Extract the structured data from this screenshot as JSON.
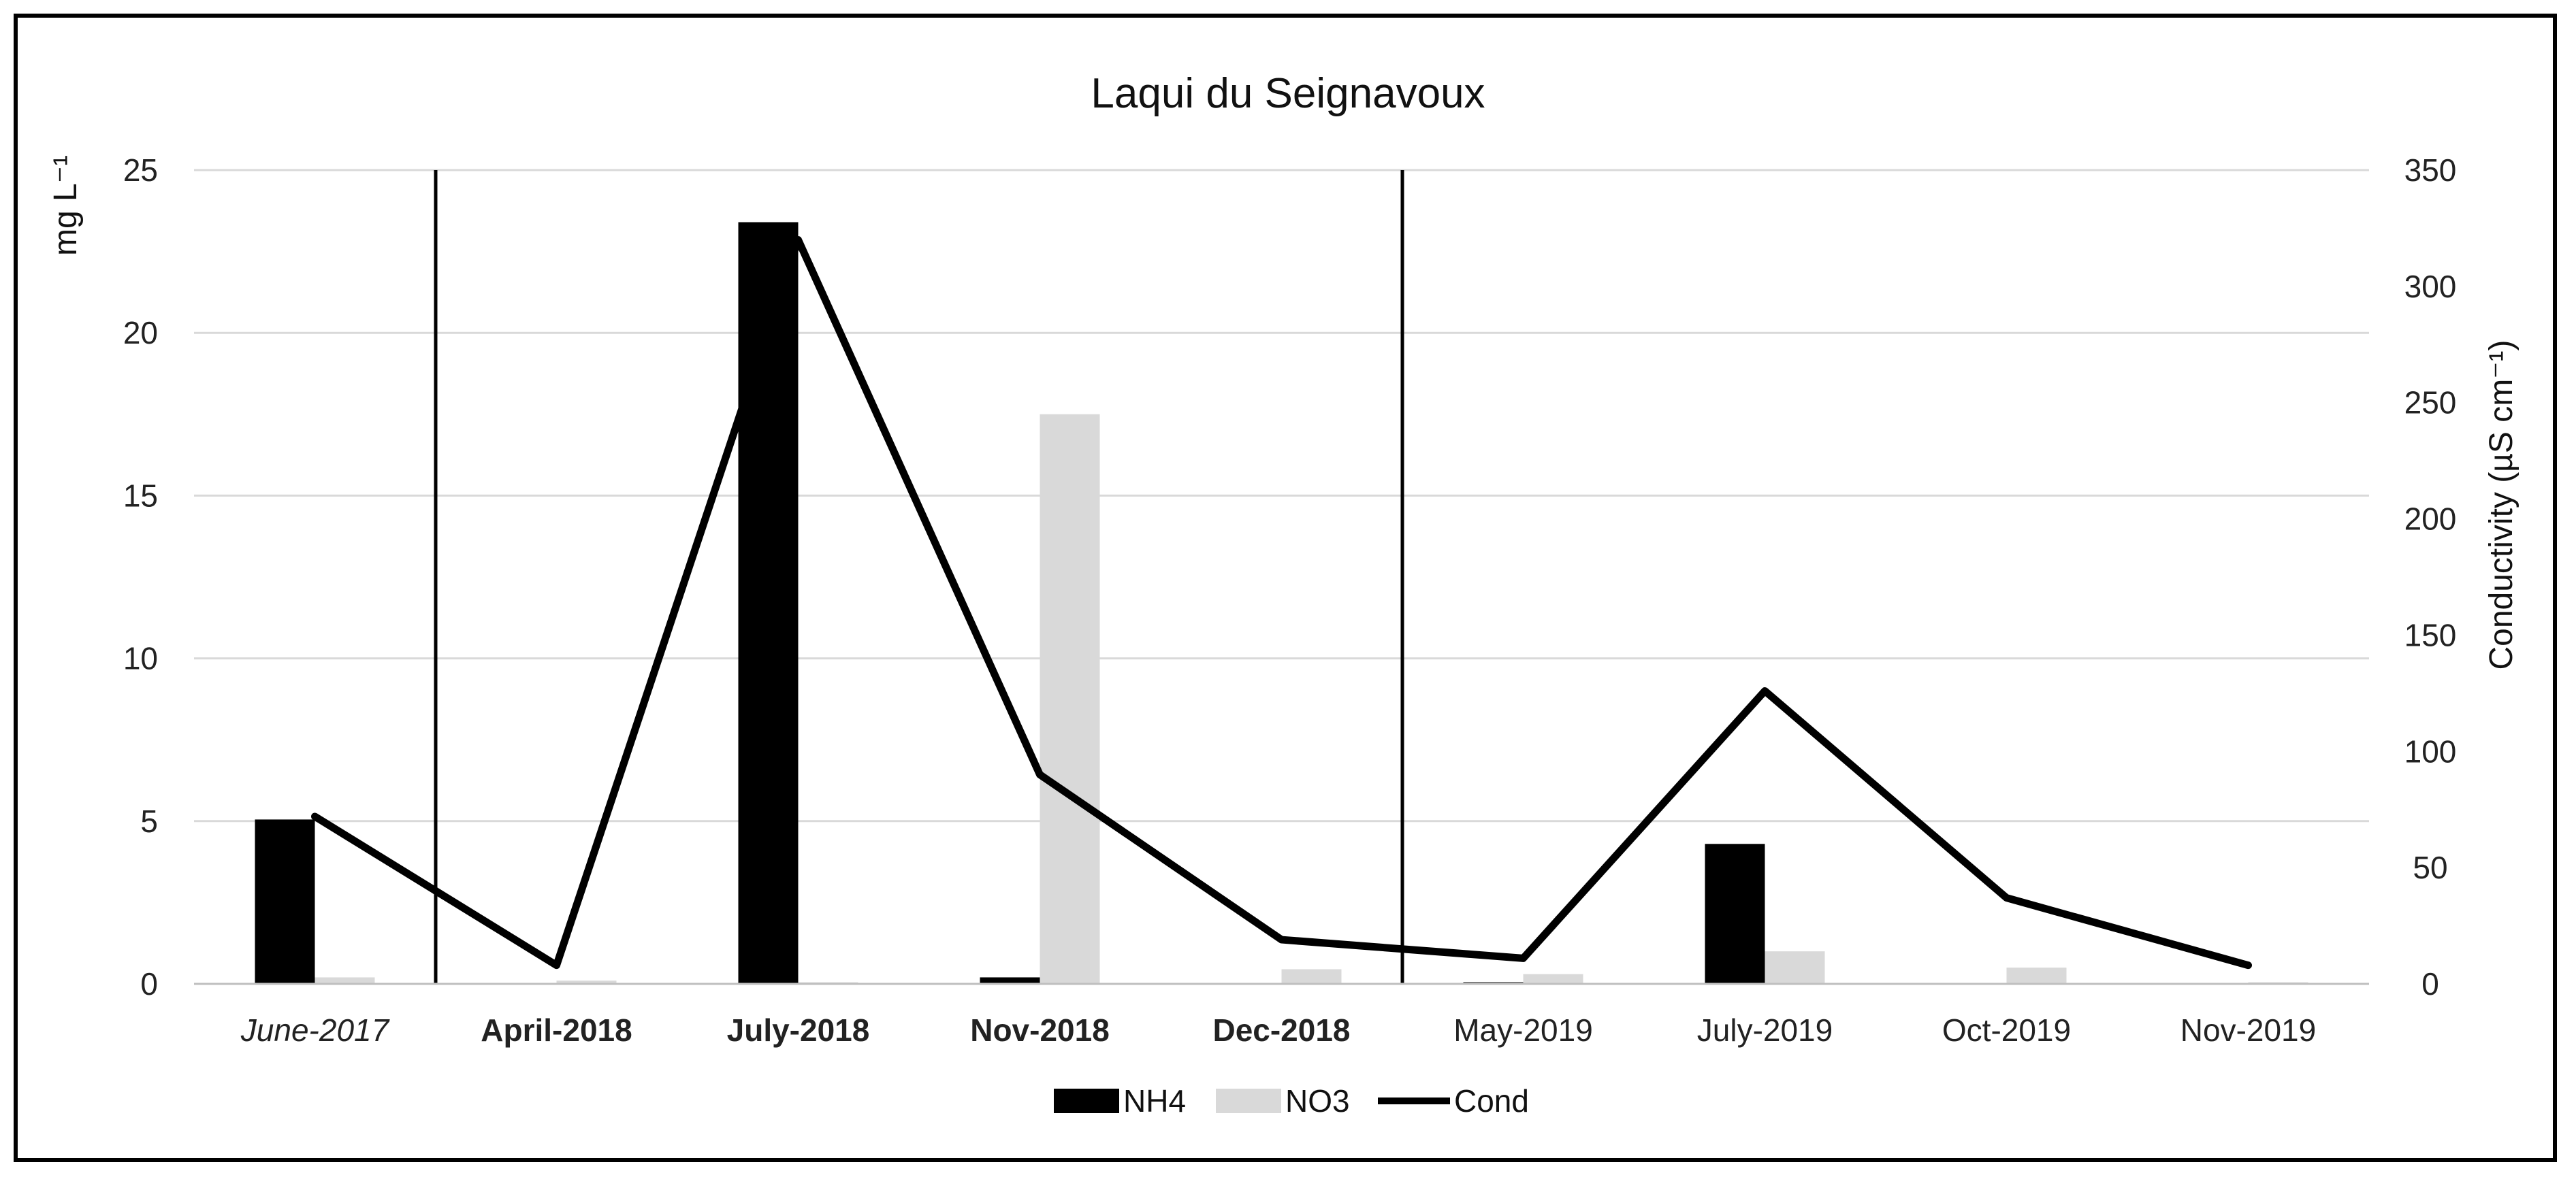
{
  "chart_data": {
    "type": "bar",
    "title": "Laqui du Seignavoux",
    "ylabel": "mg L⁻¹",
    "y2label": "Conductivity (µS cm⁻¹)",
    "ylim": [
      0,
      25
    ],
    "y2lim": [
      0,
      350
    ],
    "yticks": [
      "0",
      "5",
      "10",
      "15",
      "20",
      "25"
    ],
    "y2ticks": [
      "0",
      "50",
      "100",
      "150",
      "200",
      "250",
      "300",
      "350"
    ],
    "grid": true,
    "legend_position": "bottom",
    "categories": [
      {
        "label": "June-2017",
        "style": "italic"
      },
      {
        "label": "April-2018",
        "style": "bold"
      },
      {
        "label": "July-2018",
        "style": "bold"
      },
      {
        "label": "Nov-2018",
        "style": "bold"
      },
      {
        "label": "Dec-2018",
        "style": "bold"
      },
      {
        "label": "May-2019",
        "style": "normal"
      },
      {
        "label": "July-2019",
        "style": "normal"
      },
      {
        "label": "Oct-2019",
        "style": "normal"
      },
      {
        "label": "Nov-2019",
        "style": "normal"
      }
    ],
    "separators_after_category_index": [
      0,
      4
    ],
    "series": [
      {
        "name": "NH4",
        "kind": "bar",
        "axis": "left",
        "color": "#000000",
        "values": [
          5.05,
          0.0,
          23.4,
          0.2,
          0.0,
          0.05,
          4.3,
          0.0,
          0.0
        ]
      },
      {
        "name": "NO3",
        "kind": "bar",
        "axis": "left",
        "color": "#d9d9d9",
        "values": [
          0.2,
          0.1,
          0.05,
          17.5,
          0.45,
          0.3,
          1.0,
          0.5,
          0.05
        ]
      },
      {
        "name": "Cond",
        "kind": "line",
        "axis": "right",
        "color": "#000000",
        "values": [
          72,
          8,
          320,
          90,
          19,
          11,
          126,
          37,
          8
        ]
      }
    ]
  }
}
